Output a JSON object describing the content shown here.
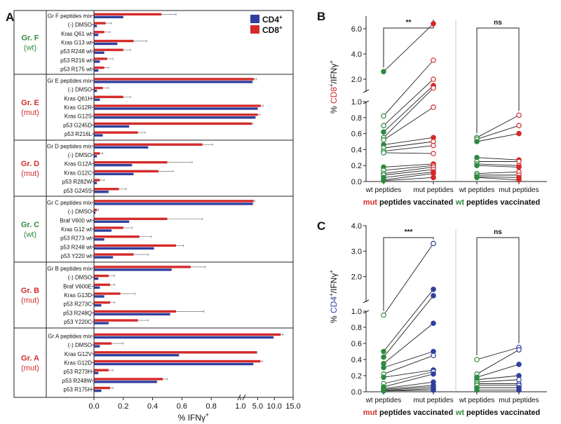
{
  "colors": {
    "cd4": "#2f3f9e",
    "cd8": "#d42a2a",
    "wt": "#2d8a3e",
    "mut": "#d42a2a",
    "axis": "#111111"
  },
  "chart_data": [
    {
      "panel": "A",
      "type": "bar",
      "orientation": "horizontal",
      "xlabel_main": "% IFNγ",
      "xlabel_sup": "+",
      "x_ticks": [
        "0.0",
        "0.2",
        "0.4",
        "0.6",
        "0.8",
        "1.0",
        "5.0",
        "10.0",
        "15.0"
      ],
      "xlim_break": {
        "low": [
          0,
          1.0
        ],
        "high": [
          1.0,
          15.0
        ]
      },
      "legend": [
        {
          "label": "CD4",
          "sup": "+"
        },
        {
          "label": "CD8",
          "sup": "+"
        }
      ],
      "groups": [
        {
          "name": "Gr. F",
          "type": "(wt)",
          "status": "wt",
          "items": [
            {
              "label": "Gr F peptides mix",
              "cd4": 0.2,
              "cd8": 0.46,
              "err": 0.1
            },
            {
              "label": "(-) DMSO",
              "cd4": 0.02,
              "cd8": 0.08,
              "err": 0.04
            },
            {
              "label": "Kras Q61 wt",
              "cd4": 0.03,
              "cd8": 0.07,
              "err": 0.04
            },
            {
              "label": "Kras G13 wt",
              "cd4": 0.16,
              "cd8": 0.27,
              "err": 0.09
            },
            {
              "label": "p53 R248 wt",
              "cd4": 0.07,
              "cd8": 0.2,
              "err": 0.05
            },
            {
              "label": "p53 R216 wt",
              "cd4": 0.04,
              "cd8": 0.09,
              "err": 0.04
            },
            {
              "label": "p53 R175 wt",
              "cd4": 0.03,
              "cd8": 0.07,
              "err": 0.03
            }
          ]
        },
        {
          "name": "Gr. E",
          "type": "(mut)",
          "status": "mut",
          "items": [
            {
              "label": "Gr E peptides mix",
              "cd4": 4.2,
              "cd8": 4.6,
              "err": 0.6
            },
            {
              "label": "(-) DMSO",
              "cd4": 0.02,
              "cd8": 0.06,
              "err": 0.04
            },
            {
              "label": "Kras Q61H",
              "cd4": 0.04,
              "cd8": 0.2,
              "err": 0.05
            },
            {
              "label": "Kras G12R",
              "cd4": 5.6,
              "cd8": 6.4,
              "err": 0.6
            },
            {
              "label": "Kras G12S",
              "cd4": 5.0,
              "cd8": 5.6,
              "err": 0.5
            },
            {
              "label": "p53 G245D",
              "cd4": 0.24,
              "cd8": 4.0,
              "err": 0.3
            },
            {
              "label": "p53 R216L",
              "cd4": 0.06,
              "cd8": 0.3,
              "err": 0.05
            }
          ]
        },
        {
          "name": "Gr. D",
          "type": "(mut)",
          "status": "mut",
          "items": [
            {
              "label": "Gr D peptides mix",
              "cd4": 0.37,
              "cd8": 0.74,
              "err": 0.07
            },
            {
              "label": "(-) DMSO",
              "cd4": 0.02,
              "cd8": 0.04,
              "err": 0.02
            },
            {
              "label": "Kras G12A",
              "cd4": 0.26,
              "cd8": 0.5,
              "err": 0.17
            },
            {
              "label": "Kras G12C",
              "cd4": 0.27,
              "cd8": 0.44,
              "err": 0.1
            },
            {
              "label": "p53 R282W",
              "cd4": 0.02,
              "cd8": 0.04,
              "err": 0.03
            },
            {
              "label": "p53 G245S",
              "cd4": 0.1,
              "cd8": 0.17,
              "err": 0.05
            }
          ]
        },
        {
          "name": "Gr. C",
          "type": "(wt)",
          "status": "wt",
          "items": [
            {
              "label": "Gr C peptides mix",
              "cd4": 4.3,
              "cd8": 4.5,
              "err": 0.3
            },
            {
              "label": "(-) DMSO",
              "cd4": 0.01,
              "cd8": 0.02,
              "err": 0.01
            },
            {
              "label": "Braf V600 wt",
              "cd4": 0.24,
              "cd8": 0.5,
              "err": 0.24
            },
            {
              "label": "Kras G12 wt",
              "cd4": 0.12,
              "cd8": 0.2,
              "err": 0.06
            },
            {
              "label": "p53 R273 wt",
              "cd4": 0.07,
              "cd8": 0.31,
              "err": 0.08
            },
            {
              "label": "p53 R248 wt",
              "cd4": 0.41,
              "cd8": 0.56,
              "err": 0.05
            },
            {
              "label": "p53 Y220 wt",
              "cd4": 0.13,
              "cd8": 0.27,
              "err": 0.1
            }
          ]
        },
        {
          "name": "Gr. B",
          "type": "(mut)",
          "status": "mut",
          "items": [
            {
              "label": "Gr B peptides mix",
              "cd4": 0.53,
              "cd8": 0.66,
              "err": 0.1
            },
            {
              "label": "(-) DMSO",
              "cd4": 0.03,
              "cd8": 0.1,
              "err": 0.04
            },
            {
              "label": "Braf V600E",
              "cd4": 0.04,
              "cd8": 0.11,
              "err": 0.03
            },
            {
              "label": "Kras G13D",
              "cd4": 0.07,
              "cd8": 0.18,
              "err": 0.1
            },
            {
              "label": "p53 R273C",
              "cd4": 0.05,
              "cd8": 0.11,
              "err": 0.03
            },
            {
              "label": "p53 R248Q",
              "cd4": 0.52,
              "cd8": 0.56,
              "err": 0.19
            },
            {
              "label": "p53 Y220C",
              "cd4": 0.1,
              "cd8": 0.3,
              "err": 0.07
            }
          ]
        },
        {
          "name": "Gr. A",
          "type": "(mut)",
          "status": "mut",
          "items": [
            {
              "label": "Gr A peptides mix",
              "cd4": 9.8,
              "cd8": 11.7,
              "err": 0.6
            },
            {
              "label": "(-) DMSO",
              "cd4": 0.04,
              "cd8": 0.12,
              "err": 0.08
            },
            {
              "label": "Kras G12V",
              "cd4": 0.58,
              "cd8": 5.3,
              "err": 0.06
            },
            {
              "label": "Kras G12D",
              "cd4": 4.4,
              "cd8": 6.3,
              "err": 0.5
            },
            {
              "label": "p53 R273H",
              "cd4": 0.03,
              "cd8": 0.1,
              "err": 0.03
            },
            {
              "label": "p53 R248W",
              "cd4": 0.43,
              "cd8": 0.47,
              "err": 0.03
            },
            {
              "label": "p53 R175H",
              "cd4": 0.05,
              "cd8": 0.11,
              "err": 0.02
            }
          ]
        }
      ]
    },
    {
      "panel": "B",
      "type": "scatter",
      "style": "paired before-after",
      "ylabel": {
        "pre": "% ",
        "cell": "CD8",
        "sup": "+",
        "post": "/IFNγ",
        "post_sup": "+"
      },
      "y_ticks": [
        "0.0",
        "0.2",
        "0.4",
        "0.6",
        "0.8",
        "1.0",
        "2.0",
        "4.0",
        "6.0"
      ],
      "ylim_break": {
        "low": [
          0,
          1.0
        ],
        "high": [
          1.0,
          7.0
        ]
      },
      "categories": [
        "wt peptides",
        "mut peptides",
        "wt peptides",
        "mut peptides"
      ],
      "group_labels": [
        {
          "colored": "mut",
          "rest": " peptides vaccinated",
          "status": "mut"
        },
        {
          "colored": "wt",
          "rest": " peptides vaccinated",
          "status": "wt"
        }
      ],
      "significance": [
        "**",
        "ns"
      ],
      "series": [
        {
          "name": "mut peptides vaccinated",
          "pairs": [
            [
              2.6,
              6.4
            ],
            [
              0.82,
              3.5
            ],
            [
              0.7,
              2.0
            ],
            [
              0.62,
              1.5
            ],
            [
              0.55,
              1.3
            ],
            [
              0.52,
              0.93
            ],
            [
              0.46,
              0.55
            ],
            [
              0.42,
              0.5
            ],
            [
              0.38,
              0.45
            ],
            [
              0.36,
              0.35
            ],
            [
              0.18,
              0.22
            ],
            [
              0.14,
              0.2
            ],
            [
              0.1,
              0.18
            ],
            [
              0.08,
              0.15
            ],
            [
              0.05,
              0.12
            ],
            [
              0.02,
              0.1
            ],
            [
              0.01,
              0.05
            ]
          ]
        },
        {
          "name": "wt peptides vaccinated",
          "pairs": [
            [
              0.55,
              0.83
            ],
            [
              0.53,
              0.7
            ],
            [
              0.5,
              0.6
            ],
            [
              0.3,
              0.27
            ],
            [
              0.25,
              0.25
            ],
            [
              0.22,
              0.2
            ],
            [
              0.2,
              0.18
            ],
            [
              0.1,
              0.12
            ],
            [
              0.08,
              0.08
            ],
            [
              0.06,
              0.05
            ],
            [
              0.05,
              0.02
            ]
          ]
        }
      ]
    },
    {
      "panel": "C",
      "type": "scatter",
      "style": "paired before-after",
      "ylabel": {
        "pre": "% ",
        "cell": "CD4",
        "sup": "+",
        "post": "/IFNγ",
        "post_sup": "+"
      },
      "y_ticks": [
        "0.0",
        "0.2",
        "0.4",
        "0.6",
        "0.8",
        "1.0",
        "2.0",
        "3.0",
        "4.0"
      ],
      "ylim_break": {
        "low": [
          0,
          1.0
        ],
        "high": [
          1.0,
          4.0
        ]
      },
      "categories": [
        "wt peptides",
        "mut peptides",
        "wt peptides",
        "mut peptides"
      ],
      "group_labels": [
        {
          "colored": "mut",
          "rest": " peptides vaccinated",
          "status": "mut"
        },
        {
          "colored": "wt",
          "rest": " peptides vaccinated",
          "status": "wt"
        }
      ],
      "significance": [
        "***",
        "ns"
      ],
      "series": [
        {
          "name": "mut peptides vaccinated",
          "pairs": [
            [
              0.95,
              3.3
            ],
            [
              0.5,
              1.5
            ],
            [
              0.43,
              1.25
            ],
            [
              0.35,
              0.85
            ],
            [
              0.3,
              0.5
            ],
            [
              0.22,
              0.45
            ],
            [
              0.18,
              0.27
            ],
            [
              0.1,
              0.25
            ],
            [
              0.06,
              0.22
            ],
            [
              0.04,
              0.12
            ],
            [
              0.03,
              0.08
            ],
            [
              0.02,
              0.06
            ],
            [
              0.01,
              0.04
            ],
            [
              0.01,
              0.02
            ]
          ]
        },
        {
          "name": "wt peptides vaccinated",
          "pairs": [
            [
              0.4,
              0.55
            ],
            [
              0.22,
              0.52
            ],
            [
              0.18,
              0.34
            ],
            [
              0.15,
              0.2
            ],
            [
              0.12,
              0.15
            ],
            [
              0.1,
              0.1
            ],
            [
              0.08,
              0.08
            ],
            [
              0.05,
              0.05
            ],
            [
              0.02,
              0.02
            ]
          ]
        }
      ]
    }
  ]
}
